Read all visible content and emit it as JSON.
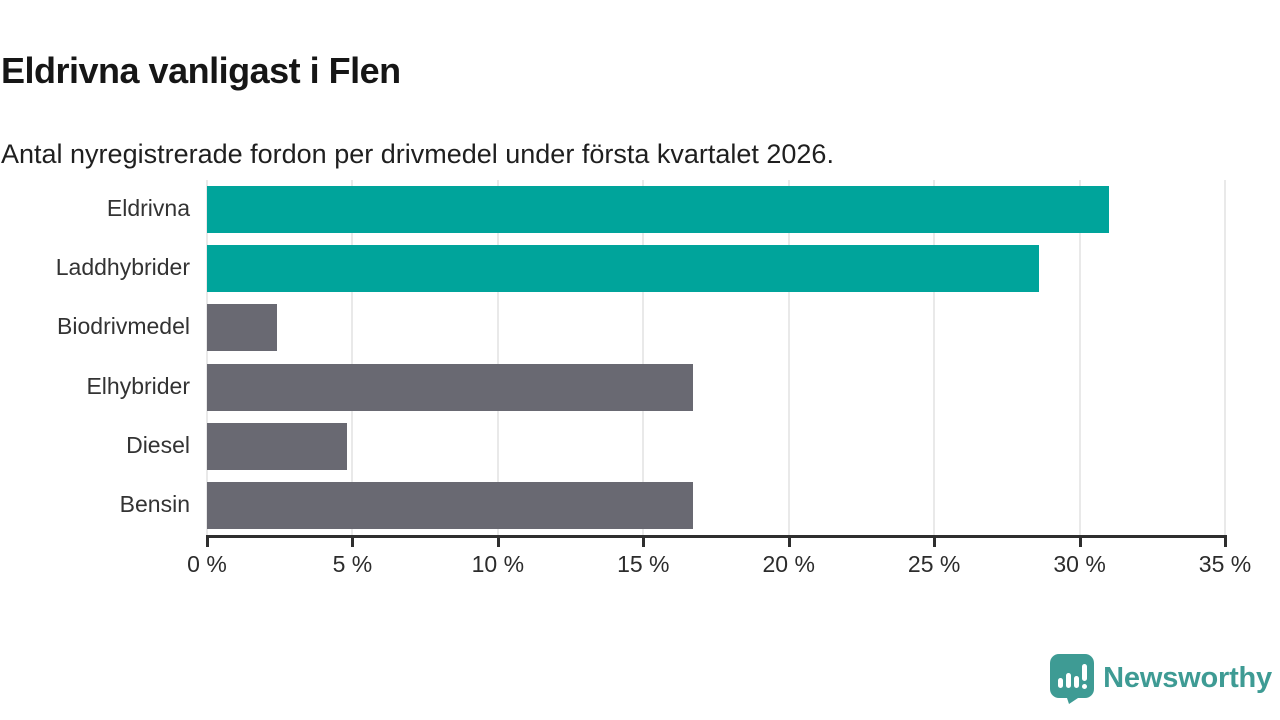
{
  "header": {
    "title": "Eldrivna vanligast i Flen",
    "subtitle": "Antal nyregistrerade fordon per drivmedel under första kvartalet 2026."
  },
  "chart_data": {
    "type": "bar",
    "orientation": "horizontal",
    "title": "Eldrivna vanligast i Flen",
    "subtitle": "Antal nyregistrerade fordon per drivmedel under första kvartalet 2026.",
    "categories": [
      "Eldrivna",
      "Laddhybrider",
      "Biodrivmedel",
      "Elhybrider",
      "Diesel",
      "Bensin"
    ],
    "values": [
      31.0,
      28.6,
      2.4,
      16.7,
      4.8,
      16.7
    ],
    "unit": "%",
    "xlim": [
      0,
      35
    ],
    "x_ticks": [
      0,
      5,
      10,
      15,
      20,
      25,
      30,
      35
    ],
    "x_tick_labels": [
      "0 %",
      "5 %",
      "10 %",
      "15 %",
      "20 %",
      "25 %",
      "30 %",
      "35 %"
    ],
    "bar_colors": [
      "#00a49b",
      "#00a49b",
      "#696972",
      "#696972",
      "#696972",
      "#696972"
    ],
    "highlight_color": "#00a49b",
    "default_color": "#696972",
    "grid": true,
    "gridline_color": "#e9e9e9",
    "axis_color": "#2e2e2e",
    "legend": null
  },
  "footer": {
    "brand_label": "Newsworthy",
    "brand_color": "#3e9b94",
    "logo_icon": "newsworthy-bubble-chart-icon"
  }
}
